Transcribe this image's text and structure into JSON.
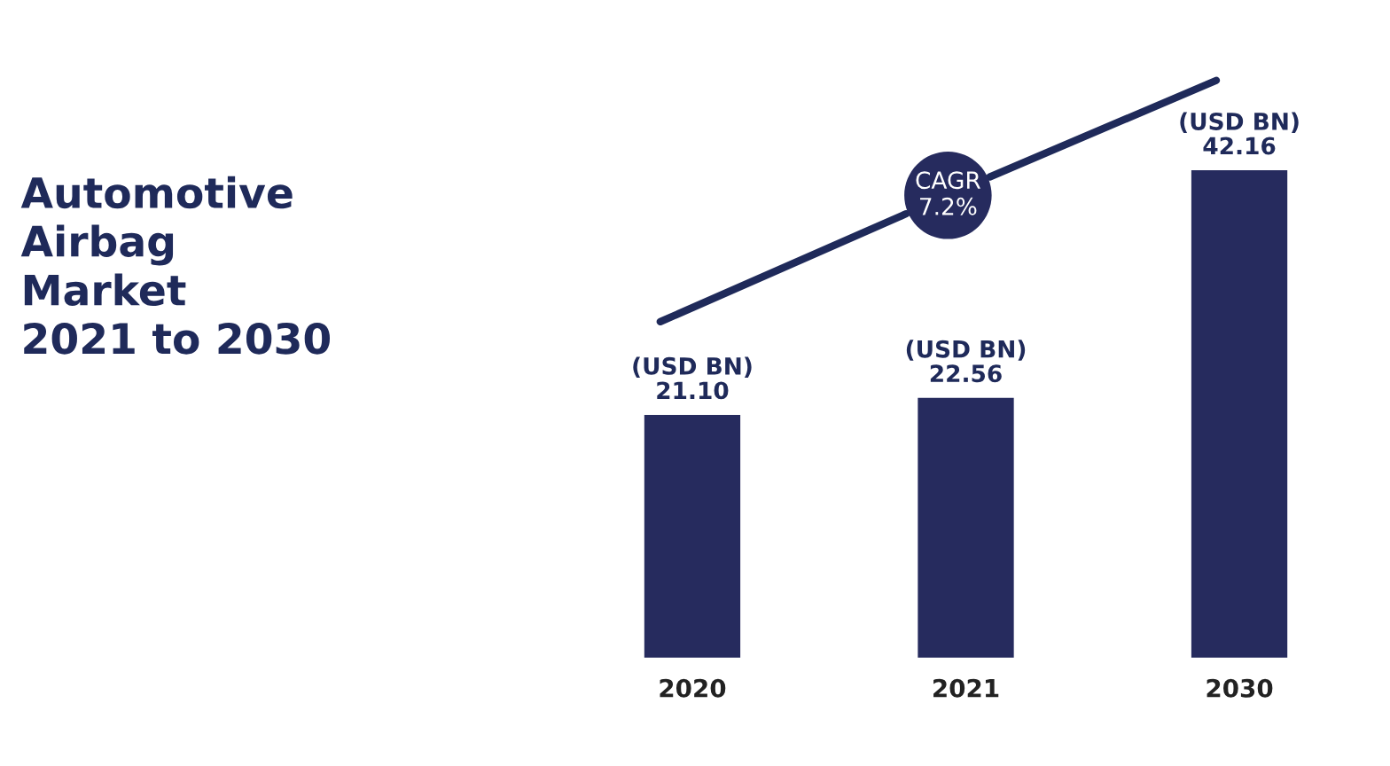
{
  "chart_data": {
    "type": "bar",
    "title": "Automotive\nAirbag\nMarket\n2021 to 2030",
    "categories": [
      "2020",
      "2021",
      "2030"
    ],
    "values": [
      21.1,
      22.56,
      42.16
    ],
    "value_labels": [
      "(USD BN)\n21.10",
      "(USD BN)\n22.56",
      "(USD BN)\n42.16"
    ],
    "color": "#262b5e",
    "annotations": [
      "CAGR\n7.2%"
    ],
    "grid": false,
    "legend": false
  }
}
